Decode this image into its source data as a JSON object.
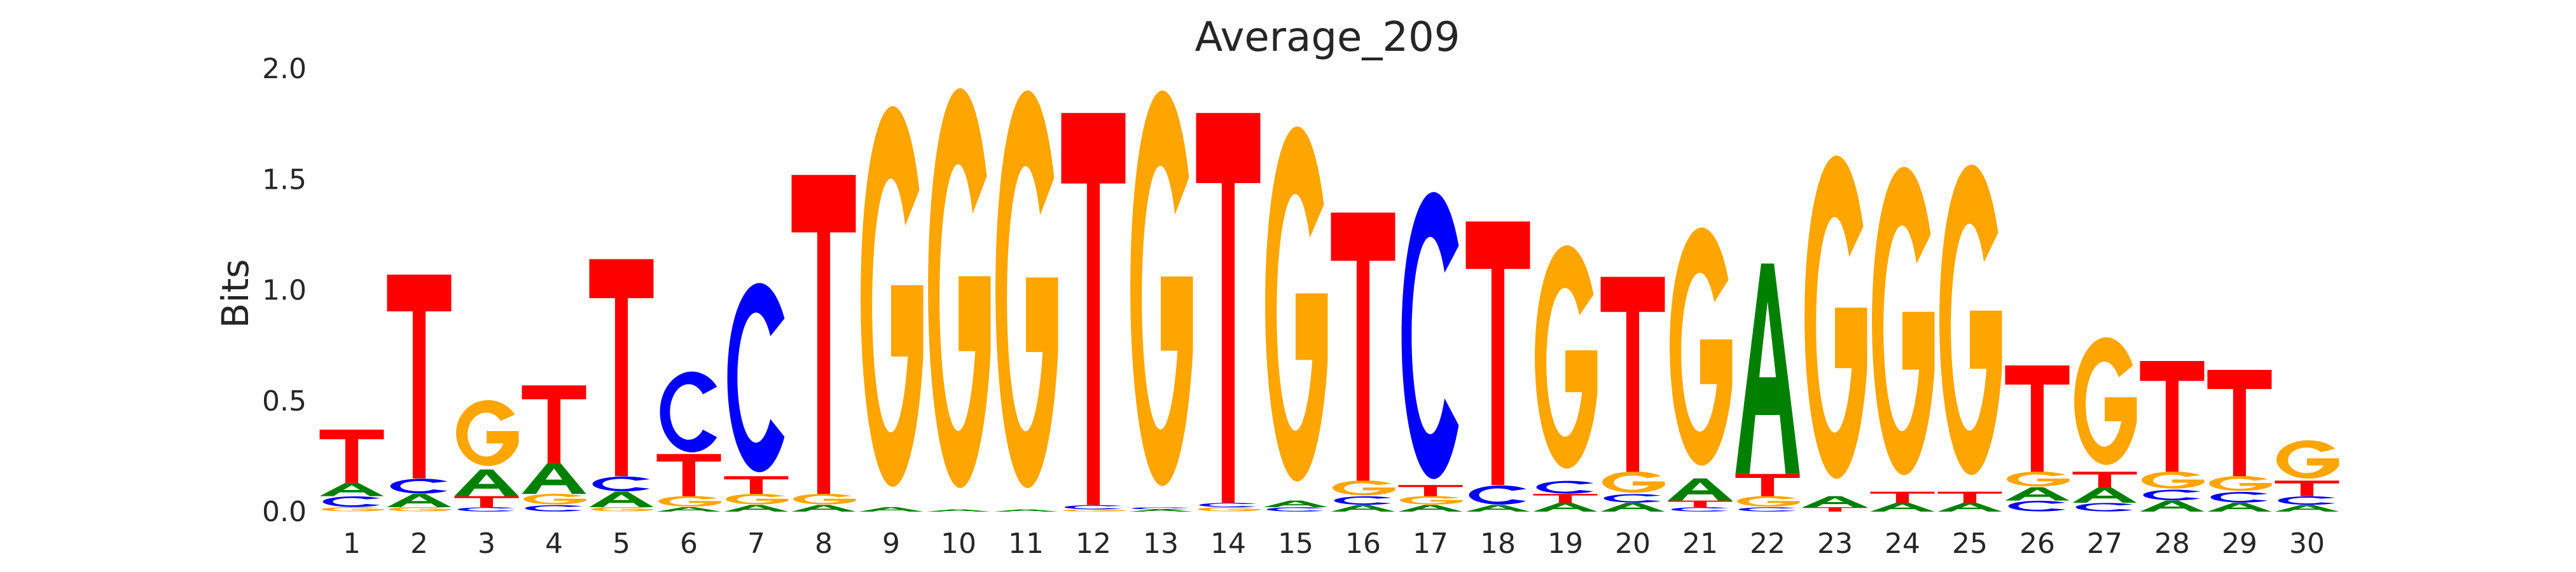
{
  "chart_data": {
    "type": "sequence-logo",
    "title": "Average_209",
    "ylabel": "Bits",
    "ylim": [
      0,
      2.0
    ],
    "y_ticks": [
      "0.0",
      "0.5",
      "1.0",
      "1.5",
      "2.0"
    ],
    "positions": [
      "1",
      "2",
      "3",
      "4",
      "5",
      "6",
      "7",
      "8",
      "9",
      "10",
      "11",
      "12",
      "13",
      "14",
      "15",
      "16",
      "17",
      "18",
      "19",
      "20",
      "21",
      "22",
      "23",
      "24",
      "25",
      "26",
      "27",
      "28",
      "29",
      "30"
    ],
    "colors": {
      "A": "#008000",
      "C": "#0000ff",
      "G": "#ffa500",
      "T": "#ff0000"
    },
    "stacks": [
      [
        [
          "G",
          0.02
        ],
        [
          "C",
          0.05
        ],
        [
          "A",
          0.06
        ],
        [
          "T",
          0.24
        ]
      ],
      [
        [
          "G",
          0.02
        ],
        [
          "A",
          0.06
        ],
        [
          "C",
          0.07
        ],
        [
          "T",
          0.92
        ]
      ],
      [
        [
          "C",
          0.02
        ],
        [
          "T",
          0.05
        ],
        [
          "A",
          0.12
        ],
        [
          "G",
          0.31
        ]
      ],
      [
        [
          "C",
          0.03
        ],
        [
          "G",
          0.05
        ],
        [
          "A",
          0.14
        ],
        [
          "T",
          0.35
        ]
      ],
      [
        [
          "G",
          0.02
        ],
        [
          "A",
          0.07
        ],
        [
          "C",
          0.07
        ],
        [
          "T",
          0.98
        ]
      ],
      [
        [
          "A",
          0.02
        ],
        [
          "G",
          0.05
        ],
        [
          "T",
          0.19
        ],
        [
          "C",
          0.38
        ]
      ],
      [
        [
          "A",
          0.03
        ],
        [
          "G",
          0.05
        ],
        [
          "T",
          0.08
        ],
        [
          "C",
          0.89
        ]
      ],
      [
        [
          "A",
          0.03
        ],
        [
          "G",
          0.05
        ],
        [
          "T",
          1.44
        ]
      ],
      [
        [
          "A",
          0.02
        ],
        [
          "G",
          1.79
        ]
      ],
      [
        [
          "A",
          0.01
        ],
        [
          "G",
          1.88
        ]
      ],
      [
        [
          "A",
          0.01
        ],
        [
          "G",
          1.87
        ]
      ],
      [
        [
          "G",
          0.01
        ],
        [
          "C",
          0.02
        ],
        [
          "T",
          1.77
        ]
      ],
      [
        [
          "A",
          0.01
        ],
        [
          "C",
          0.01
        ],
        [
          "G",
          1.86
        ]
      ],
      [
        [
          "G",
          0.02
        ],
        [
          "C",
          0.02
        ],
        [
          "T",
          1.76
        ]
      ],
      [
        [
          "C",
          0.02
        ],
        [
          "A",
          0.03
        ],
        [
          "G",
          1.67
        ]
      ],
      [
        [
          "A",
          0.03
        ],
        [
          "C",
          0.04
        ],
        [
          "G",
          0.07
        ],
        [
          "T",
          1.21
        ]
      ],
      [
        [
          "A",
          0.03
        ],
        [
          "G",
          0.04
        ],
        [
          "T",
          0.05
        ],
        [
          "C",
          1.35
        ]
      ],
      [
        [
          "A",
          0.03
        ],
        [
          "C",
          0.09
        ],
        [
          "T",
          1.19
        ]
      ],
      [
        [
          "A",
          0.04
        ],
        [
          "T",
          0.04
        ],
        [
          "C",
          0.06
        ],
        [
          "G",
          1.05
        ]
      ],
      [
        [
          "A",
          0.04
        ],
        [
          "C",
          0.04
        ],
        [
          "G",
          0.1
        ],
        [
          "T",
          0.88
        ]
      ],
      [
        [
          "C",
          0.02
        ],
        [
          "T",
          0.03
        ],
        [
          "A",
          0.1
        ],
        [
          "G",
          1.12
        ]
      ],
      [
        [
          "C",
          0.02
        ],
        [
          "G",
          0.05
        ],
        [
          "T",
          0.1
        ],
        [
          "A",
          0.95
        ]
      ],
      [
        [
          "T",
          0.02
        ],
        [
          "A",
          0.05
        ],
        [
          "G",
          1.52
        ]
      ],
      [
        [
          "A",
          0.04
        ],
        [
          "T",
          0.05
        ],
        [
          "G",
          1.45
        ]
      ],
      [
        [
          "A",
          0.04
        ],
        [
          "T",
          0.05
        ],
        [
          "G",
          1.46
        ]
      ],
      [
        [
          "C",
          0.05
        ],
        [
          "A",
          0.06
        ],
        [
          "G",
          0.07
        ],
        [
          "T",
          0.48
        ]
      ],
      [
        [
          "C",
          0.04
        ],
        [
          "A",
          0.07
        ],
        [
          "T",
          0.07
        ],
        [
          "G",
          0.6
        ]
      ],
      [
        [
          "A",
          0.05
        ],
        [
          "C",
          0.05
        ],
        [
          "G",
          0.08
        ],
        [
          "T",
          0.5
        ]
      ],
      [
        [
          "A",
          0.04
        ],
        [
          "C",
          0.05
        ],
        [
          "G",
          0.07
        ],
        [
          "T",
          0.48
        ]
      ],
      [
        [
          "A",
          0.03
        ],
        [
          "C",
          0.04
        ],
        [
          "T",
          0.07
        ],
        [
          "G",
          0.18
        ]
      ]
    ]
  }
}
